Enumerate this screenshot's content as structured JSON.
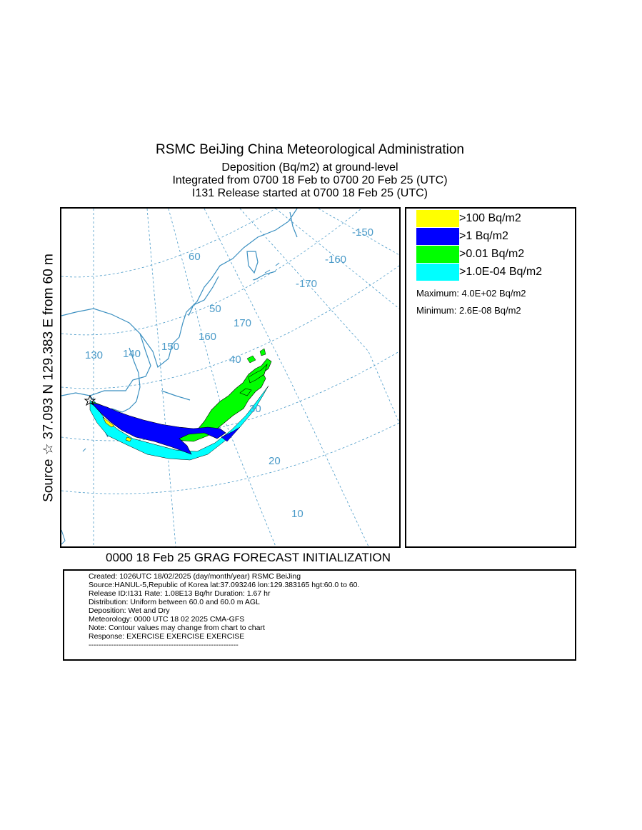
{
  "header": {
    "title": "RSMC BeiJing China Meteorological Administration",
    "line1": "Deposition  (Bq/m2) at ground-level",
    "line2": "Integrated from 0700 18 Feb to 0700 20 Feb 25 (UTC)",
    "line3": "I131 Release started at 0700 18 Feb 25 (UTC)"
  },
  "side_label": "Source ☆ 37.093  N 129.383  E     from   60 m",
  "map": {
    "grid_labels": [
      "-150",
      "-160",
      "-170",
      "60",
      "50",
      "170",
      "160",
      "150",
      "140",
      "130",
      "40",
      "30",
      "20",
      "10"
    ],
    "colors": {
      "grid": "#4a9ac8",
      "coast": "#3a8fc0",
      "plume_green": "#00ff00",
      "plume_blue": "#0000ff",
      "plume_cyan": "#00ffff",
      "plume_yellow": "#ffff00"
    },
    "source_marker": "star-icon"
  },
  "legend": {
    "items": [
      {
        "label": ">100 Bq/m2",
        "color": "#ffff00"
      },
      {
        "label": ">1 Bq/m2",
        "color": "#0000ff"
      },
      {
        "label": ">0.01 Bq/m2",
        "color": "#00ff00"
      },
      {
        "label": ">1.0E-04 Bq/m2",
        "color": "#00ffff"
      }
    ],
    "maximum": "Maximum: 4.0E+02 Bq/m2",
    "minimum": "Minimum: 2.6E-08 Bq/m2"
  },
  "init_label": "0000 18 Feb 25 GRAG FORECAST INITIALIZATION",
  "info": {
    "lines": [
      "Created: 1026UTC 18/02/2025 (day/month/year) RSMC BeiJing",
      "Source:HANUL-5,Republic of Korea  lat:37.093246  lon:129.383165  hgt:60.0 to 60.",
      "Release ID:I131   Rate: 1.08E13 Bq/hr  Duration: 1.67 hr",
      "Distribution: Uniform between 60.0 and 60.0 m AGL",
      "Deposition:   Wet and Dry",
      "Meteorology: 0000 UTC 18 02 2025 CMA-GFS",
      "Note: Contour values may change from chart to chart",
      "Response: EXERCISE  EXERCISE  EXERCISE",
      "------------------------------------------------------------"
    ]
  }
}
